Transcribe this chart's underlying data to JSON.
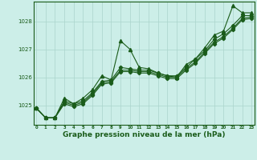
{
  "background_color": "#cceee8",
  "grid_color": "#aad4cc",
  "line_color": "#1a5c1a",
  "xlabel": "Graphe pression niveau de la mer (hPa)",
  "xlabel_fontsize": 6.5,
  "ylabel_ticks": [
    1025,
    1026,
    1027,
    1028
  ],
  "xticks": [
    0,
    1,
    2,
    3,
    4,
    5,
    6,
    7,
    8,
    9,
    10,
    11,
    12,
    13,
    14,
    15,
    16,
    17,
    18,
    19,
    20,
    21,
    22,
    23
  ],
  "ylim": [
    1024.3,
    1028.7
  ],
  "xlim": [
    -0.3,
    23.3
  ],
  "series": [
    [
      1024.9,
      1024.55,
      1024.55,
      1025.25,
      1025.05,
      1025.25,
      1025.55,
      1026.05,
      1025.9,
      1027.3,
      1027.0,
      1026.35,
      1026.3,
      1026.15,
      1026.05,
      1026.0,
      1026.45,
      1026.65,
      1027.05,
      1027.5,
      1027.65,
      1028.55,
      1028.3,
      1028.3
    ],
    [
      1024.9,
      1024.55,
      1024.55,
      1025.15,
      1025.05,
      1025.15,
      1025.45,
      1025.85,
      1025.9,
      1026.35,
      1026.3,
      1026.25,
      1026.25,
      1026.15,
      1026.05,
      1026.05,
      1026.35,
      1026.65,
      1026.95,
      1027.35,
      1027.55,
      1027.85,
      1028.2,
      1028.2
    ],
    [
      1024.9,
      1024.55,
      1024.55,
      1025.1,
      1025.0,
      1025.1,
      1025.4,
      1025.8,
      1025.85,
      1026.25,
      1026.25,
      1026.2,
      1026.2,
      1026.1,
      1026.0,
      1026.0,
      1026.3,
      1026.55,
      1026.9,
      1027.25,
      1027.45,
      1027.75,
      1028.1,
      1028.15
    ],
    [
      1024.9,
      1024.55,
      1024.55,
      1025.05,
      1024.95,
      1025.05,
      1025.35,
      1025.75,
      1025.8,
      1026.2,
      1026.2,
      1026.15,
      1026.15,
      1026.05,
      1025.95,
      1025.95,
      1026.25,
      1026.5,
      1026.85,
      1027.2,
      1027.4,
      1027.7,
      1028.05,
      1028.1
    ]
  ]
}
